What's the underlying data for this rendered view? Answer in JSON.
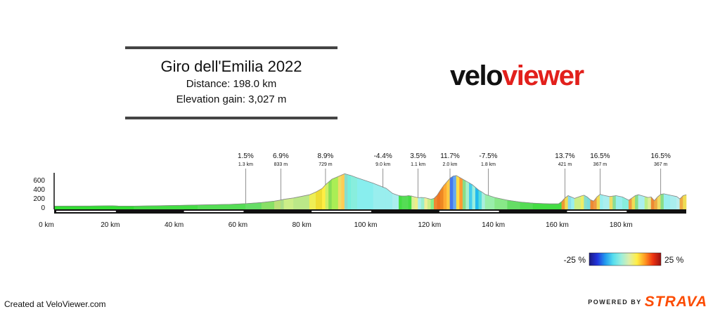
{
  "header": {
    "title": "Giro dell'Emilia 2022",
    "distance": "Distance: 198.0 km",
    "elevation_gain": "Elevation gain: 3,027 m"
  },
  "logo": {
    "part1": "velo",
    "part2": "viewer",
    "color_dark": "#111111",
    "color_red": "#e2201c"
  },
  "footer": {
    "created": "Created at VeloViewer.com",
    "powered_by": "POWERED BY",
    "strava": "STRAVA",
    "strava_color": "#fc4c02"
  },
  "chart_data": {
    "type": "area",
    "xlabel": "",
    "ylabel": "",
    "x_ticks": [
      0,
      20,
      40,
      60,
      80,
      100,
      120,
      140,
      160,
      180
    ],
    "x_tick_labels": [
      "0 km",
      "20 km",
      "40 km",
      "60 km",
      "80 km",
      "100 km",
      "120 km",
      "140 km",
      "160 km",
      "180 km"
    ],
    "y_ticks": [
      0,
      200,
      400,
      600
    ],
    "y_tick_labels": [
      "0",
      "200",
      "400",
      "600"
    ],
    "xlim": [
      0,
      198
    ],
    "ylim": [
      -40,
      760
    ],
    "grid": false,
    "profile": [
      [
        0,
        30,
        "#33dd33"
      ],
      [
        10,
        32,
        "#33dd33"
      ],
      [
        18,
        38,
        "#33dd33"
      ],
      [
        20,
        32,
        "#33dd33"
      ],
      [
        25,
        30,
        "#33dd33"
      ],
      [
        35,
        42,
        "#44dd44"
      ],
      [
        45,
        55,
        "#44dd44"
      ],
      [
        55,
        70,
        "#55dd55"
      ],
      [
        60,
        85,
        "#55dd55"
      ],
      [
        65,
        110,
        "#66dd66"
      ],
      [
        69,
        140,
        "#88e066"
      ],
      [
        71,
        165,
        "#bbe077"
      ],
      [
        72,
        180,
        "#aadd88"
      ],
      [
        75,
        210,
        "#ccee88"
      ],
      [
        80,
        280,
        "#bbe888"
      ],
      [
        82,
        340,
        "#eeee55"
      ],
      [
        84,
        420,
        "#eedd33"
      ],
      [
        85,
        500,
        "#ffee44"
      ],
      [
        86,
        560,
        "#ccee66"
      ],
      [
        87,
        620,
        "#88dd55"
      ],
      [
        89,
        680,
        "#aaee55"
      ],
      [
        90,
        710,
        "#eedd66"
      ],
      [
        91,
        740,
        "#ffcc55"
      ],
      [
        92,
        720,
        "#88ddcc"
      ],
      [
        93,
        700,
        "#77eedd"
      ],
      [
        95,
        650,
        "#88eedd"
      ],
      [
        100,
        530,
        "#88eeee"
      ],
      [
        104,
        420,
        "#99eeee"
      ],
      [
        106,
        310,
        "#99eeee"
      ],
      [
        108,
        260,
        "#aaeeee"
      ],
      [
        109,
        250,
        "#44dd44"
      ],
      [
        110,
        250,
        "#55dd55"
      ],
      [
        111,
        260,
        "#55dd55"
      ],
      [
        112,
        250,
        "#44dd44"
      ],
      [
        113,
        230,
        "#ddee99"
      ],
      [
        114,
        215,
        "#eeee88"
      ],
      [
        115,
        220,
        "#aaeeee"
      ],
      [
        116,
        215,
        "#99eecc"
      ],
      [
        117,
        200,
        "#eeee99"
      ],
      [
        118,
        180,
        "#ccee88"
      ],
      [
        119,
        200,
        "#88ee88"
      ],
      [
        120,
        270,
        "#ee8833"
      ],
      [
        121,
        380,
        "#ee7722"
      ],
      [
        122,
        480,
        "#ee8822"
      ],
      [
        123,
        560,
        "#ffaa33"
      ],
      [
        124,
        640,
        "#ffcc44"
      ],
      [
        125,
        690,
        "#4477ee"
      ],
      [
        126,
        700,
        "#66aaee"
      ],
      [
        127,
        660,
        "#ffdd44"
      ],
      [
        128,
        620,
        "#ff9933"
      ],
      [
        129,
        580,
        "#88dd88"
      ],
      [
        130,
        540,
        "#aaeecc"
      ],
      [
        131,
        500,
        "#44ccee"
      ],
      [
        132,
        440,
        "#99eedd"
      ],
      [
        133,
        380,
        "#22bbee"
      ],
      [
        134,
        340,
        "#55dddd"
      ],
      [
        135,
        290,
        "#aaeedd"
      ],
      [
        138,
        220,
        "#99eeaa"
      ],
      [
        142,
        160,
        "#88e888"
      ],
      [
        146,
        120,
        "#66dd66"
      ],
      [
        150,
        95,
        "#55dd55"
      ],
      [
        155,
        80,
        "#44dd44"
      ],
      [
        158,
        80,
        "#44dd44"
      ],
      [
        159,
        130,
        "#44dd44"
      ],
      [
        160,
        210,
        "#ee9933"
      ],
      [
        161,
        260,
        "#eedd55"
      ],
      [
        162,
        230,
        "#88ddee"
      ],
      [
        163,
        200,
        "#99eeee"
      ],
      [
        165,
        250,
        "#ccee88"
      ],
      [
        166,
        270,
        "#eeee66"
      ],
      [
        167,
        230,
        "#88ddcc"
      ],
      [
        168,
        170,
        "#77dddd"
      ],
      [
        169,
        140,
        "#ee8833"
      ],
      [
        170,
        230,
        "#ee9944"
      ],
      [
        171,
        290,
        "#eedd55"
      ],
      [
        172,
        270,
        "#99eeee"
      ],
      [
        174,
        240,
        "#aaeeee"
      ],
      [
        175,
        250,
        "#eedd66"
      ],
      [
        176,
        260,
        "#88dd99"
      ],
      [
        178,
        230,
        "#99eeee"
      ],
      [
        180,
        160,
        "#88eedd"
      ],
      [
        181,
        210,
        "#ee9944"
      ],
      [
        182,
        260,
        "#eedd55"
      ],
      [
        183,
        280,
        "#88dd88"
      ],
      [
        185,
        240,
        "#aaeeee"
      ],
      [
        186,
        220,
        "#bbee88"
      ],
      [
        187,
        230,
        "#ddee99"
      ],
      [
        188,
        150,
        "#ee8833"
      ],
      [
        189,
        230,
        "#eeaa44"
      ],
      [
        190,
        290,
        "#eedd66"
      ],
      [
        191,
        300,
        "#88dd88"
      ],
      [
        193,
        270,
        "#99eeee"
      ],
      [
        195,
        240,
        "#aaeeee"
      ],
      [
        196,
        190,
        "#bbeeee"
      ],
      [
        197,
        260,
        "#eeaa44"
      ],
      [
        198,
        280,
        "#eedd55"
      ]
    ],
    "climbs": [
      {
        "km": 60,
        "elev": 85,
        "gradient": "1.5%",
        "length": "1.3 km"
      },
      {
        "km": 71,
        "elev": 165,
        "gradient": "6.9%",
        "length": "833 m"
      },
      {
        "km": 85,
        "elev": 500,
        "gradient": "8.9%",
        "length": "729 m"
      },
      {
        "km": 103,
        "elev": 440,
        "gradient": "-4.4%",
        "length": "9.0 km"
      },
      {
        "km": 114,
        "elev": 215,
        "gradient": "3.5%",
        "length": "1.1 km"
      },
      {
        "km": 124,
        "elev": 640,
        "gradient": "11.7%",
        "length": "2.0 km"
      },
      {
        "km": 136,
        "elev": 270,
        "gradient": "-7.5%",
        "length": "1.8 km"
      },
      {
        "km": 160,
        "elev": 210,
        "gradient": "13.7%",
        "length": "421 m"
      },
      {
        "km": 171,
        "elev": 290,
        "gradient": "16.5%",
        "length": "367 m"
      },
      {
        "km": 190,
        "elev": 290,
        "gradient": "16.5%",
        "length": "367 m"
      }
    ],
    "gradient_legend": {
      "min_label": "-25 %",
      "max_label": "25 %",
      "colors": [
        "#1a1a80",
        "#2233dd",
        "#2299ee",
        "#55ddee",
        "#99eedd",
        "#ddeeaa",
        "#ffee44",
        "#ff9922",
        "#ee3311",
        "#991111"
      ]
    }
  }
}
